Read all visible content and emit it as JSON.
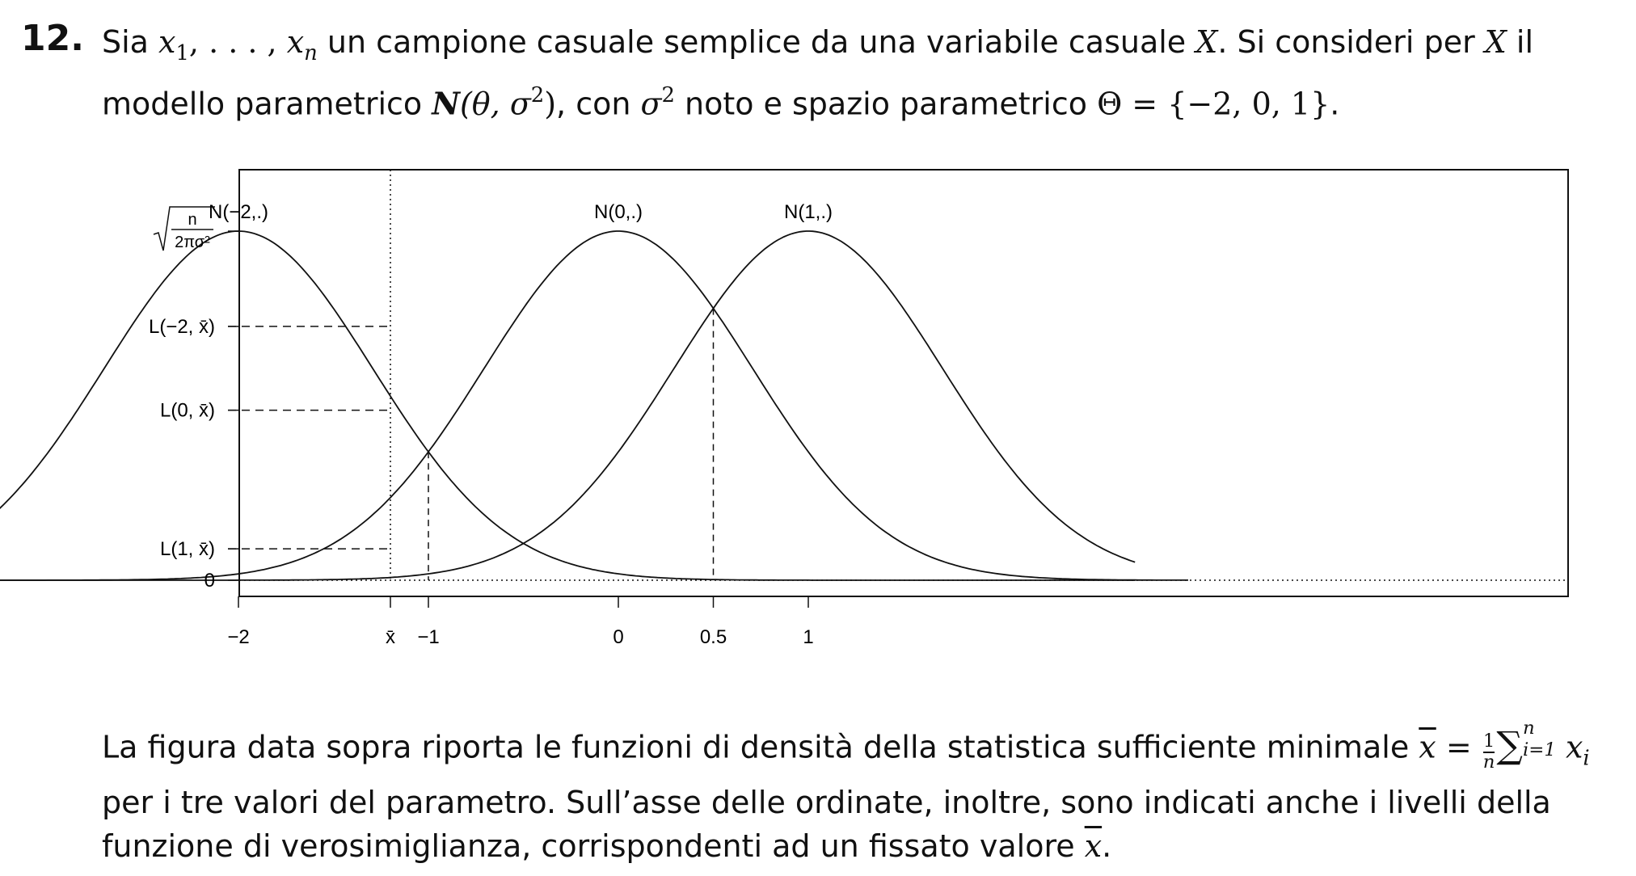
{
  "problem": {
    "number": "12.",
    "line1": {
      "t1": "Sia ",
      "x1_base": "x",
      "x1_sub": "1",
      "dots": ", . . . , ",
      "xn_base": "x",
      "xn_sub": "n",
      "t2": " un campione casuale semplice da una variabile casuale ",
      "X1": "X",
      "t3": ". Si consideri per ",
      "X2": "X",
      "t4": " il"
    },
    "line2": {
      "t1": "modello parametrico ",
      "N": "N",
      "args": "(θ, σ",
      "args_sup": "2",
      "args_close": ")",
      "t2": ", con ",
      "sigma": "σ",
      "sigma_sup": "2",
      "t3": " noto e spazio parametrico ",
      "theta_set": "Θ = {−2, 0, 1}",
      "t4": "."
    }
  },
  "chart_data": {
    "type": "line",
    "x": [
      -2,
      0,
      1
    ],
    "xlim": [
      -4.0,
      3.0
    ],
    "ylim": [
      0,
      1
    ],
    "grid": false,
    "legend": "none",
    "series": [
      {
        "name": "N(−2,.)",
        "mean": -2
      },
      {
        "name": "N(0,.)",
        "mean": 0
      },
      {
        "name": "N(1,.)",
        "mean": 1
      }
    ],
    "xbar": -1.2,
    "xticks": [
      {
        "value": -2,
        "label": "−2"
      },
      {
        "value": -1.2,
        "label": "x̄"
      },
      {
        "value": -1,
        "label": "−1"
      },
      {
        "value": 0,
        "label": "0"
      },
      {
        "value": 0.5,
        "label": "0.5"
      },
      {
        "value": 1,
        "label": "1"
      }
    ],
    "yticks": [
      {
        "value": 1.0,
        "label": "n/2πσ²",
        "sqrt_num": "n",
        "sqrt_den": "2πσ²"
      },
      {
        "value": 0.727,
        "label": "L(−2, x̄)"
      },
      {
        "value": 0.487,
        "label": "L(0, x̄)"
      },
      {
        "value": 0.09,
        "label": "L(1, x̄)"
      },
      {
        "value": 0,
        "label": "0"
      }
    ],
    "vlines": [
      -1.2,
      -1,
      0.5
    ],
    "title": "",
    "xlabel": "",
    "ylabel": ""
  },
  "paragraph": {
    "p1": "La figura data sopra riporta le funzioni di densità della statistica sufficiente minimale ",
    "xbar": "x",
    "eq": " = ",
    "frac_num": "1",
    "frac_den": "n",
    "sum": "∑",
    "sum_top": "n",
    "sum_bot": "i=1",
    "xi_base": "x",
    "xi_sub": "i",
    "p2": "per i tre valori del parametro. Sull’asse delle ordinate, inoltre, sono indicati anche i livelli della",
    "p3_a": "funzione di verosimiglianza, corrispondenti ad un fissato valore ",
    "p3_xbar": "x",
    "p3_b": "."
  }
}
